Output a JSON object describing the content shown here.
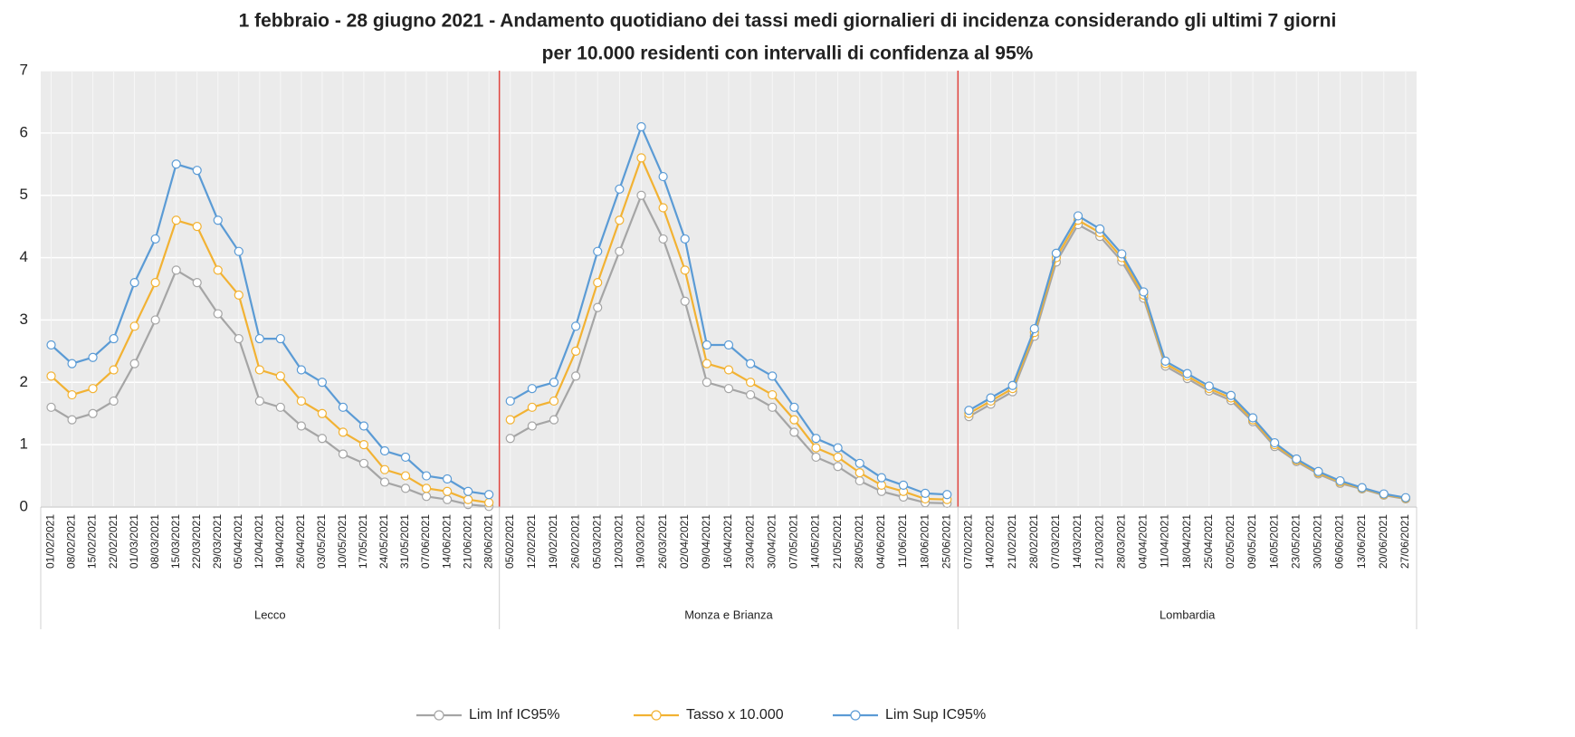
{
  "chart_data": {
    "type": "line",
    "title": "1 febbraio - 28 giugno 2021 - Andamento quotidiano dei tassi medi giornalieri di incidenza considerando gli ultimi 7 giorni",
    "subtitle": "per 10.000 residenti con intervalli di confidenza al 95%",
    "ylim": [
      0,
      7
    ],
    "yticks": [
      0,
      1,
      2,
      3,
      4,
      5,
      6,
      7
    ],
    "grid": true,
    "series": [
      {
        "name": "Lim Inf IC95%",
        "color": "#a5a5a5"
      },
      {
        "name": "Tasso x 10.000",
        "color": "#f2b233"
      },
      {
        "name": "Lim Sup IC95%",
        "color": "#5b9bd5"
      }
    ],
    "panels": [
      {
        "name": "Lecco",
        "categories": [
          "01/02/2021",
          "08/02/2021",
          "15/02/2021",
          "22/02/2021",
          "01/03/2021",
          "08/03/2021",
          "15/03/2021",
          "22/03/2021",
          "29/03/2021",
          "05/04/2021",
          "12/04/2021",
          "19/04/2021",
          "26/04/2021",
          "03/05/2021",
          "10/05/2021",
          "17/05/2021",
          "24/05/2021",
          "31/05/2021",
          "07/06/2021",
          "14/06/2021",
          "21/06/2021",
          "28/06/2021"
        ],
        "values": [
          [
            1.6,
            1.4,
            1.5,
            1.7,
            2.3,
            3.0,
            3.8,
            3.6,
            3.1,
            2.7,
            1.7,
            1.6,
            1.3,
            1.1,
            0.85,
            0.7,
            0.4,
            0.3,
            0.17,
            0.12,
            0.04,
            0.01
          ],
          [
            2.1,
            1.8,
            1.9,
            2.2,
            2.9,
            3.6,
            4.6,
            4.5,
            3.8,
            3.4,
            2.2,
            2.1,
            1.7,
            1.5,
            1.2,
            1.0,
            0.6,
            0.5,
            0.3,
            0.25,
            0.12,
            0.07
          ],
          [
            2.6,
            2.3,
            2.4,
            2.7,
            3.6,
            4.3,
            5.5,
            5.4,
            4.6,
            4.1,
            2.7,
            2.7,
            2.2,
            2.0,
            1.6,
            1.3,
            0.9,
            0.8,
            0.5,
            0.45,
            0.25,
            0.2
          ]
        ]
      },
      {
        "name": "Monza e Brianza",
        "categories": [
          "05/02/2021",
          "12/02/2021",
          "19/02/2021",
          "26/02/2021",
          "05/03/2021",
          "12/03/2021",
          "19/03/2021",
          "26/03/2021",
          "02/04/2021",
          "09/04/2021",
          "16/04/2021",
          "23/04/2021",
          "30/04/2021",
          "07/05/2021",
          "14/05/2021",
          "21/05/2021",
          "28/05/2021",
          "04/06/2021",
          "11/06/2021",
          "18/06/2021",
          "25/06/2021"
        ],
        "values": [
          [
            1.1,
            1.3,
            1.4,
            2.1,
            3.2,
            4.1,
            5.0,
            4.3,
            3.3,
            2.0,
            1.9,
            1.8,
            1.6,
            1.2,
            0.8,
            0.65,
            0.42,
            0.25,
            0.16,
            0.07,
            0.06
          ],
          [
            1.4,
            1.6,
            1.7,
            2.5,
            3.6,
            4.6,
            5.6,
            4.8,
            3.8,
            2.3,
            2.2,
            2.0,
            1.8,
            1.4,
            0.95,
            0.8,
            0.55,
            0.35,
            0.25,
            0.13,
            0.12
          ],
          [
            1.7,
            1.9,
            2.0,
            2.9,
            4.1,
            5.1,
            6.1,
            5.3,
            4.3,
            2.6,
            2.6,
            2.3,
            2.1,
            1.6,
            1.1,
            0.95,
            0.7,
            0.47,
            0.35,
            0.22,
            0.2
          ]
        ]
      },
      {
        "name": "Lombardia",
        "categories": [
          "07/02/2021",
          "14/02/2021",
          "21/02/2021",
          "28/02/2021",
          "07/03/2021",
          "14/03/2021",
          "21/03/2021",
          "28/03/2021",
          "04/04/2021",
          "11/04/2021",
          "18/04/2021",
          "25/04/2021",
          "02/05/2021",
          "09/05/2021",
          "16/05/2021",
          "23/05/2021",
          "30/05/2021",
          "06/06/2021",
          "13/06/2021",
          "20/06/2021",
          "27/06/2021"
        ],
        "values": [
          [
            1.45,
            1.65,
            1.85,
            2.74,
            3.93,
            4.53,
            4.34,
            3.94,
            3.35,
            2.26,
            2.06,
            1.86,
            1.71,
            1.37,
            0.97,
            0.73,
            0.53,
            0.38,
            0.29,
            0.19,
            0.13
          ],
          [
            1.5,
            1.7,
            1.9,
            2.8,
            4.0,
            4.6,
            4.4,
            4.0,
            3.4,
            2.3,
            2.1,
            1.9,
            1.75,
            1.4,
            1.0,
            0.75,
            0.55,
            0.4,
            0.3,
            0.2,
            0.14
          ],
          [
            1.55,
            1.75,
            1.95,
            2.86,
            4.07,
            4.67,
            4.46,
            4.06,
            3.45,
            2.34,
            2.14,
            1.94,
            1.79,
            1.43,
            1.03,
            0.77,
            0.57,
            0.42,
            0.31,
            0.21,
            0.15
          ]
        ]
      }
    ]
  }
}
